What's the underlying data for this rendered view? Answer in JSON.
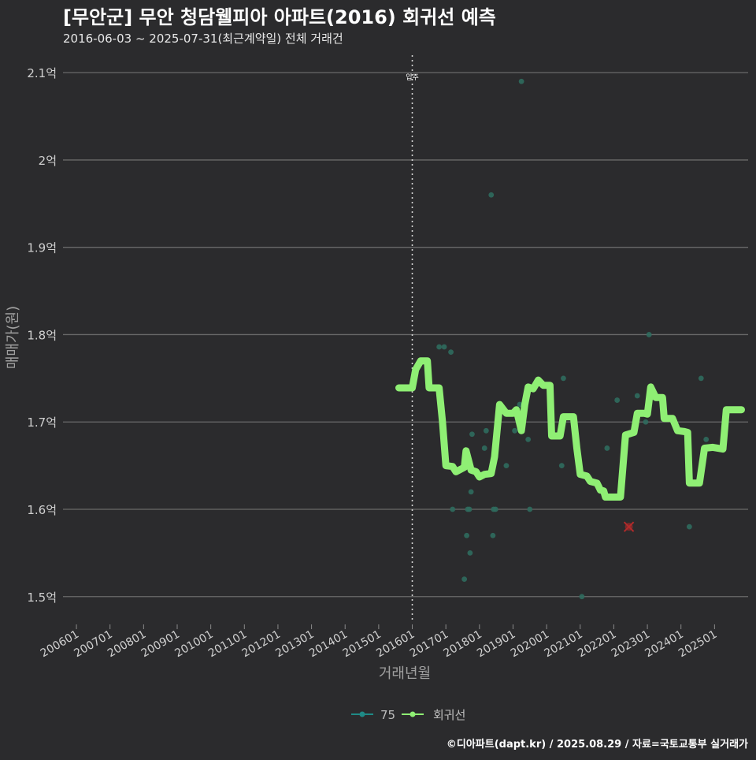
{
  "chart_data": {
    "type": "line",
    "title": "[무안군] 무안 청담웰피아 아파트(2016) 회귀선 예측",
    "subtitle": "2016-06-03 ~ 2025-07-31(최근계약일) 전체 거래건",
    "xlabel": "거래년월",
    "ylabel": "매매가(원)",
    "ylim": [
      1.47,
      2.12
    ],
    "y_ticks": [
      1.5,
      1.6,
      1.7,
      1.8,
      1.9,
      2.0,
      2.1
    ],
    "y_tick_labels": [
      "1.5억",
      "1.6억",
      "1.7억",
      "1.8억",
      "1.9억",
      "2억",
      "2.1억"
    ],
    "xlim": [
      2005.6,
      2026.0
    ],
    "x_ticks": [
      2006,
      2007,
      2008,
      2009,
      2010,
      2011,
      2012,
      2013,
      2014,
      2015,
      2016,
      2017,
      2018,
      2019,
      2020,
      2021,
      2022,
      2023,
      2024,
      2025
    ],
    "x_tick_labels": [
      "200601",
      "200701",
      "200801",
      "200901",
      "201001",
      "201101",
      "201201",
      "201301",
      "201401",
      "201501",
      "201601",
      "201701",
      "201801",
      "201901",
      "202001",
      "202101",
      "202201",
      "202301",
      "202401",
      "202501"
    ],
    "annotation": {
      "label": "입주",
      "x": 2016.0
    },
    "legend": [
      {
        "name": "75",
        "color": "#1f8a86"
      },
      {
        "name": "회귀선",
        "color": "#8fef74"
      }
    ],
    "series": [
      {
        "name": "75",
        "kind": "scatter",
        "color": "#2f6b5e",
        "points": [
          [
            2016.8,
            1.786
          ],
          [
            2016.95,
            1.786
          ],
          [
            2017.15,
            1.78
          ],
          [
            2017.2,
            1.6
          ],
          [
            2017.55,
            1.52
          ],
          [
            2017.62,
            1.57
          ],
          [
            2017.65,
            1.6
          ],
          [
            2017.7,
            1.6
          ],
          [
            2017.72,
            1.55
          ],
          [
            2017.75,
            1.62
          ],
          [
            2017.78,
            1.686
          ],
          [
            2018.15,
            1.67
          ],
          [
            2018.2,
            1.69
          ],
          [
            2018.35,
            1.96
          ],
          [
            2018.4,
            1.57
          ],
          [
            2018.42,
            1.6
          ],
          [
            2018.48,
            1.6
          ],
          [
            2018.8,
            1.65
          ],
          [
            2019.05,
            1.69
          ],
          [
            2019.2,
            1.72
          ],
          [
            2019.25,
            2.09
          ],
          [
            2019.45,
            1.68
          ],
          [
            2019.5,
            1.6
          ],
          [
            2020.45,
            1.65
          ],
          [
            2020.5,
            1.75
          ],
          [
            2021.05,
            1.5
          ],
          [
            2021.8,
            1.67
          ],
          [
            2022.1,
            1.725
          ],
          [
            2022.7,
            1.73
          ],
          [
            2022.95,
            1.7
          ],
          [
            2023.05,
            1.8
          ],
          [
            2024.25,
            1.58
          ],
          [
            2024.6,
            1.75
          ],
          [
            2024.75,
            1.68
          ]
        ]
      },
      {
        "name": "회귀선",
        "kind": "line",
        "color": "#8fef74",
        "points": [
          [
            2015.6,
            1.739
          ],
          [
            2016.0,
            1.739
          ],
          [
            2016.1,
            1.76
          ],
          [
            2016.25,
            1.77
          ],
          [
            2016.45,
            1.77
          ],
          [
            2016.5,
            1.739
          ],
          [
            2016.8,
            1.739
          ],
          [
            2016.9,
            1.7
          ],
          [
            2017.0,
            1.65
          ],
          [
            2017.2,
            1.649
          ],
          [
            2017.3,
            1.643
          ],
          [
            2017.55,
            1.648
          ],
          [
            2017.6,
            1.667
          ],
          [
            2017.75,
            1.645
          ],
          [
            2017.9,
            1.643
          ],
          [
            2018.0,
            1.637
          ],
          [
            2018.15,
            1.64
          ],
          [
            2018.35,
            1.641
          ],
          [
            2018.45,
            1.66
          ],
          [
            2018.6,
            1.72
          ],
          [
            2018.8,
            1.71
          ],
          [
            2019.0,
            1.71
          ],
          [
            2019.1,
            1.714
          ],
          [
            2019.25,
            1.69
          ],
          [
            2019.35,
            1.72
          ],
          [
            2019.45,
            1.74
          ],
          [
            2019.6,
            1.738
          ],
          [
            2019.75,
            1.748
          ],
          [
            2019.9,
            1.742
          ],
          [
            2020.1,
            1.742
          ],
          [
            2020.15,
            1.684
          ],
          [
            2020.4,
            1.684
          ],
          [
            2020.5,
            1.706
          ],
          [
            2020.8,
            1.706
          ],
          [
            2020.9,
            1.67
          ],
          [
            2021.0,
            1.64
          ],
          [
            2021.2,
            1.638
          ],
          [
            2021.3,
            1.632
          ],
          [
            2021.5,
            1.63
          ],
          [
            2021.6,
            1.622
          ],
          [
            2021.7,
            1.621
          ],
          [
            2021.75,
            1.614
          ],
          [
            2022.2,
            1.614
          ],
          [
            2022.35,
            1.685
          ],
          [
            2022.6,
            1.688
          ],
          [
            2022.7,
            1.71
          ],
          [
            2022.9,
            1.71
          ],
          [
            2023.0,
            1.709
          ],
          [
            2023.1,
            1.74
          ],
          [
            2023.25,
            1.728
          ],
          [
            2023.45,
            1.728
          ],
          [
            2023.5,
            1.704
          ],
          [
            2023.75,
            1.704
          ],
          [
            2023.9,
            1.69
          ],
          [
            2024.1,
            1.689
          ],
          [
            2024.2,
            1.688
          ],
          [
            2024.25,
            1.63
          ],
          [
            2024.55,
            1.63
          ],
          [
            2024.7,
            1.67
          ],
          [
            2024.95,
            1.671
          ],
          [
            2025.25,
            1.669
          ],
          [
            2025.35,
            1.714
          ],
          [
            2025.8,
            1.714
          ]
        ]
      }
    ],
    "outlier": {
      "x": 2022.45,
      "y": 1.58,
      "color": "#b22a2a"
    }
  },
  "footer": {
    "credit": "©디아파트(dapt.kr) / 2025.08.29 / 자료=국토교통부 실거래가"
  }
}
